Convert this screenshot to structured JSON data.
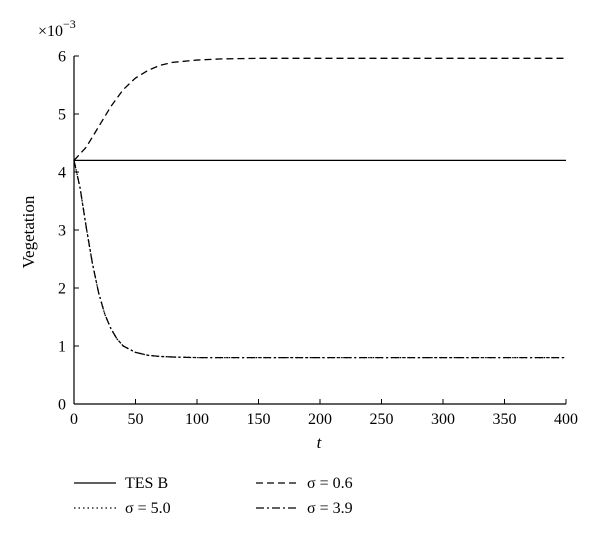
{
  "chart_data": {
    "type": "line",
    "xlabel": "t",
    "ylabel": "Vegetation",
    "y_multiplier_label": "×10",
    "y_multiplier_exponent": "−3",
    "xlim": [
      0,
      400
    ],
    "ylim": [
      0,
      6
    ],
    "x_ticks": [
      0,
      50,
      100,
      150,
      200,
      250,
      300,
      350,
      400
    ],
    "y_ticks": [
      0,
      1,
      2,
      3,
      4,
      5,
      6
    ],
    "grid": false,
    "legend_position": "bottom",
    "series": [
      {
        "name": "TES B",
        "style": "solid",
        "color": "#000000",
        "x": [
          0,
          400
        ],
        "y": [
          4.2,
          4.2
        ]
      },
      {
        "name": "σ = 0.6",
        "style": "dashed",
        "color": "#000000",
        "x": [
          0,
          10,
          20,
          30,
          40,
          50,
          60,
          70,
          80,
          100,
          120,
          150,
          200,
          300,
          400
        ],
        "y": [
          4.2,
          4.43,
          4.78,
          5.13,
          5.42,
          5.62,
          5.75,
          5.84,
          5.89,
          5.93,
          5.95,
          5.96,
          5.96,
          5.96,
          5.96
        ]
      },
      {
        "name": "σ = 5.0",
        "style": "dotted",
        "color": "#000000",
        "x": [
          0,
          5,
          10,
          15,
          20,
          25,
          30,
          35,
          40,
          50,
          60,
          70,
          80,
          100,
          150,
          200,
          300,
          400
        ],
        "y": [
          4.2,
          3.72,
          3.04,
          2.42,
          1.92,
          1.55,
          1.3,
          1.12,
          1.0,
          0.89,
          0.84,
          0.82,
          0.81,
          0.8,
          0.8,
          0.8,
          0.8,
          0.8
        ]
      },
      {
        "name": "σ = 3.9",
        "style": "dashdot",
        "color": "#000000",
        "x": [
          0,
          5,
          10,
          15,
          20,
          25,
          30,
          35,
          40,
          50,
          60,
          70,
          80,
          100,
          150,
          200,
          300,
          400
        ],
        "y": [
          4.2,
          3.72,
          3.04,
          2.42,
          1.92,
          1.55,
          1.3,
          1.12,
          1.0,
          0.89,
          0.84,
          0.82,
          0.81,
          0.8,
          0.8,
          0.8,
          0.8,
          0.8
        ]
      }
    ]
  }
}
